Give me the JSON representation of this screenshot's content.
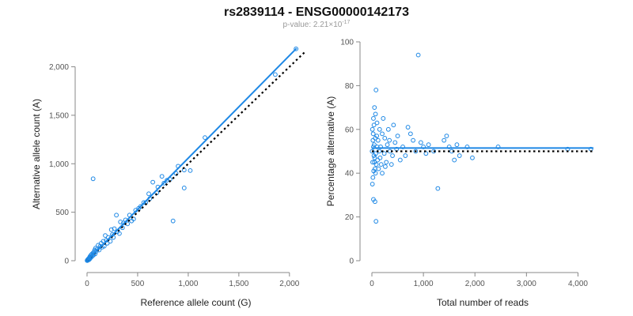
{
  "header": {
    "title": "rs2839114 - ENSG00000142173",
    "pvalue_prefix": "p-value: 2.21×10",
    "pvalue_exponent": "-17"
  },
  "colors": {
    "points": "#1e88e5",
    "fit": "#1e88e5",
    "reference": "#000000"
  },
  "chart_data": [
    {
      "type": "scatter",
      "title": "",
      "xlabel": "Reference allele count (G)",
      "ylabel": "Alternative allele count (A)",
      "xlim": [
        0,
        2150
      ],
      "ylim": [
        0,
        2200
      ],
      "xticks": [
        0,
        500,
        1000,
        1500,
        2000
      ],
      "xtick_labels": [
        "0",
        "500",
        "1,000",
        "1,500",
        "2,000"
      ],
      "yticks": [
        0,
        500,
        1000,
        1500,
        2000
      ],
      "ytick_labels": [
        "0",
        "500",
        "1,000",
        "1,500",
        "2,000"
      ],
      "grid": false,
      "lines": [
        {
          "role": "reference",
          "style": "dotted",
          "x": [
            0,
            2150
          ],
          "y": [
            0,
            2150
          ]
        },
        {
          "role": "fit",
          "style": "solid",
          "x": [
            0,
            2070
          ],
          "y": [
            0,
            2190
          ]
        }
      ],
      "points": [
        [
          60,
          845
        ],
        [
          2065,
          2185
        ],
        [
          1860,
          1920
        ],
        [
          1165,
          1270
        ],
        [
          900,
          975
        ],
        [
          960,
          935
        ],
        [
          1020,
          930
        ],
        [
          850,
          410
        ],
        [
          960,
          750
        ],
        [
          700,
          760
        ],
        [
          650,
          810
        ],
        [
          740,
          870
        ],
        [
          690,
          700
        ],
        [
          790,
          830
        ],
        [
          610,
          690
        ],
        [
          560,
          600
        ],
        [
          530,
          560
        ],
        [
          480,
          520
        ],
        [
          460,
          430
        ],
        [
          420,
          470
        ],
        [
          380,
          420
        ],
        [
          350,
          340
        ],
        [
          330,
          400
        ],
        [
          290,
          470
        ],
        [
          300,
          300
        ],
        [
          250,
          270
        ],
        [
          240,
          320
        ],
        [
          210,
          240
        ],
        [
          200,
          180
        ],
        [
          180,
          260
        ],
        [
          160,
          200
        ],
        [
          150,
          140
        ],
        [
          140,
          180
        ],
        [
          130,
          150
        ],
        [
          120,
          110
        ],
        [
          110,
          160
        ],
        [
          100,
          120
        ],
        [
          90,
          95
        ],
        [
          85,
          130
        ],
        [
          80,
          70
        ],
        [
          75,
          110
        ],
        [
          70,
          90
        ],
        [
          65,
          60
        ],
        [
          60,
          80
        ],
        [
          55,
          50
        ],
        [
          50,
          70
        ],
        [
          45,
          40
        ],
        [
          40,
          60
        ],
        [
          35,
          30
        ],
        [
          30,
          45
        ],
        [
          28,
          20
        ],
        [
          25,
          35
        ],
        [
          22,
          15
        ],
        [
          20,
          25
        ],
        [
          18,
          10
        ],
        [
          15,
          20
        ],
        [
          12,
          8
        ],
        [
          10,
          15
        ],
        [
          8,
          5
        ],
        [
          6,
          10
        ],
        [
          5,
          3
        ],
        [
          4,
          6
        ],
        [
          3,
          2
        ],
        [
          2,
          4
        ],
        [
          1,
          1
        ],
        [
          270,
          330
        ],
        [
          320,
          280
        ],
        [
          400,
          380
        ],
        [
          440,
          410
        ],
        [
          580,
          600
        ],
        [
          620,
          640
        ],
        [
          760,
          800
        ],
        [
          820,
          840
        ],
        [
          880,
          900
        ],
        [
          230,
          200
        ],
        [
          190,
          210
        ],
        [
          170,
          150
        ],
        [
          260,
          240
        ],
        [
          360,
          390
        ],
        [
          510,
          540
        ]
      ]
    },
    {
      "type": "scatter",
      "title": "",
      "xlabel": "Total number of reads",
      "ylabel": "Percentage alternative (A)",
      "xlim": [
        0,
        4300
      ],
      "ylim": [
        0,
        100
      ],
      "xticks": [
        0,
        1000,
        2000,
        3000,
        4000
      ],
      "xtick_labels": [
        "0",
        "1,000",
        "2,000",
        "3,000",
        "4,000"
      ],
      "yticks": [
        0,
        20,
        40,
        60,
        80,
        100
      ],
      "ytick_labels": [
        "0",
        "20",
        "40",
        "60",
        "80",
        "100"
      ],
      "grid": false,
      "lines": [
        {
          "role": "reference",
          "style": "dotted",
          "x": [
            0,
            4300
          ],
          "y": [
            50,
            50
          ]
        },
        {
          "role": "fit",
          "style": "solid",
          "x": [
            0,
            4300
          ],
          "y": [
            51.5,
            51.5
          ]
        }
      ],
      "points": [
        [
          900,
          94
        ],
        [
          80,
          78
        ],
        [
          50,
          70
        ],
        [
          30,
          65
        ],
        [
          70,
          67
        ],
        [
          40,
          62
        ],
        [
          100,
          63
        ],
        [
          150,
          60
        ],
        [
          200,
          58
        ],
        [
          10,
          60
        ],
        [
          20,
          55
        ],
        [
          30,
          52
        ],
        [
          40,
          48
        ],
        [
          50,
          45
        ],
        [
          60,
          42
        ],
        [
          70,
          40
        ],
        [
          20,
          38
        ],
        [
          10,
          35
        ],
        [
          30,
          28
        ],
        [
          60,
          27
        ],
        [
          80,
          18
        ],
        [
          120,
          55
        ],
        [
          140,
          50
        ],
        [
          160,
          47
        ],
        [
          180,
          44
        ],
        [
          100,
          52
        ],
        [
          110,
          46
        ],
        [
          130,
          42
        ],
        [
          250,
          56
        ],
        [
          300,
          53
        ],
        [
          350,
          50
        ],
        [
          400,
          48
        ],
        [
          450,
          54
        ],
        [
          500,
          57
        ],
        [
          550,
          46
        ],
        [
          600,
          52
        ],
        [
          700,
          61
        ],
        [
          800,
          55
        ],
        [
          850,
          50
        ],
        [
          1000,
          52
        ],
        [
          1050,
          49
        ],
        [
          1100,
          53
        ],
        [
          1280,
          33
        ],
        [
          1400,
          55
        ],
        [
          1450,
          57
        ],
        [
          1500,
          52
        ],
        [
          1550,
          50
        ],
        [
          1600,
          46
        ],
        [
          1700,
          48
        ],
        [
          1850,
          52
        ],
        [
          1950,
          47
        ],
        [
          2450,
          52
        ],
        [
          3800,
          51
        ],
        [
          4250,
          51
        ],
        [
          200,
          40
        ],
        [
          220,
          65
        ],
        [
          280,
          45
        ],
        [
          320,
          60
        ],
        [
          380,
          44
        ],
        [
          420,
          62
        ],
        [
          5,
          50
        ],
        [
          15,
          45
        ],
        [
          25,
          58
        ],
        [
          35,
          41
        ],
        [
          45,
          53
        ],
        [
          55,
          47
        ],
        [
          65,
          56
        ],
        [
          75,
          49
        ],
        [
          85,
          44
        ],
        [
          95,
          57
        ],
        [
          170,
          52
        ],
        [
          240,
          49
        ],
        [
          260,
          43
        ],
        [
          340,
          55
        ],
        [
          480,
          51
        ],
        [
          650,
          48
        ],
        [
          750,
          58
        ],
        [
          950,
          54
        ],
        [
          1200,
          50
        ],
        [
          1650,
          53
        ]
      ]
    }
  ]
}
